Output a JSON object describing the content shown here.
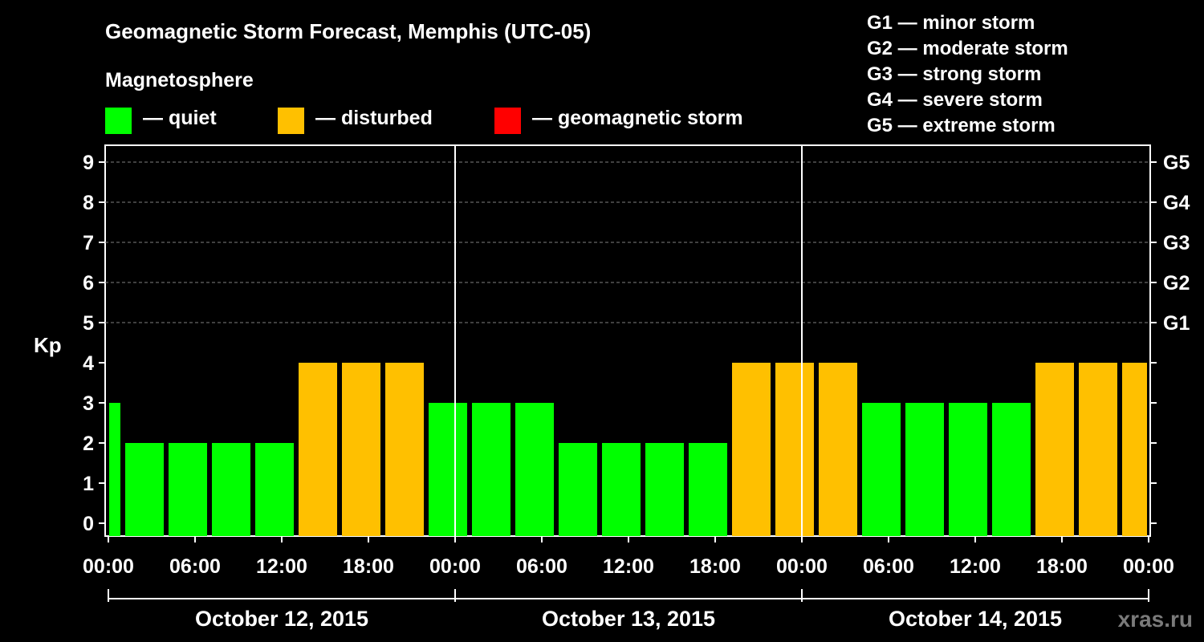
{
  "title": "Geomagnetic Storm Forecast, Memphis (UTC-05)",
  "subtitle": "Magnetosphere",
  "legend": [
    {
      "label": "— quiet",
      "color": "#00ff00"
    },
    {
      "label": "— disturbed",
      "color": "#ffc000"
    },
    {
      "label": "— geomagnetic storm",
      "color": "#ff0000"
    }
  ],
  "g_legend": [
    "G1 — minor storm",
    "G2 — moderate storm",
    "G3 — strong storm",
    "G4 — severe storm",
    "G5 — extreme storm"
  ],
  "watermark": "xras.ru",
  "chart_data": {
    "type": "bar",
    "ylabel": "Kp",
    "ylim": [
      0,
      9
    ],
    "yticks": [
      "0",
      "1",
      "2",
      "3",
      "4",
      "5",
      "6",
      "7",
      "8",
      "9"
    ],
    "right_ticks": [
      {
        "value": 5,
        "label": "G1"
      },
      {
        "value": 6,
        "label": "G2"
      },
      {
        "value": 7,
        "label": "G3"
      },
      {
        "value": 8,
        "label": "G4"
      },
      {
        "value": 9,
        "label": "G5"
      }
    ],
    "xticks": [
      "00:00",
      "06:00",
      "12:00",
      "18:00",
      "00:00",
      "06:00",
      "12:00",
      "18:00",
      "00:00",
      "06:00",
      "12:00",
      "18:00",
      "00:00"
    ],
    "days": [
      "October 12, 2015",
      "October 13, 2015",
      "October 14, 2015"
    ],
    "grid": "dashed horizontal",
    "colors": {
      "quiet": "#00ff00",
      "disturbed": "#ffc000",
      "storm": "#ff0000"
    },
    "categories": [
      "Oct 12 00:00",
      "Oct 12 01:00",
      "Oct 12 04:00",
      "Oct 12 07:00",
      "Oct 12 10:00",
      "Oct 12 13:00",
      "Oct 12 16:00",
      "Oct 12 19:00",
      "Oct 12 22:00",
      "Oct 13 01:00",
      "Oct 13 04:00",
      "Oct 13 07:00",
      "Oct 13 10:00",
      "Oct 13 13:00",
      "Oct 13 16:00",
      "Oct 13 19:00",
      "Oct 13 22:00",
      "Oct 14 01:00",
      "Oct 14 04:00",
      "Oct 14 07:00",
      "Oct 14 10:00",
      "Oct 14 13:00",
      "Oct 14 16:00",
      "Oct 14 19:00",
      "Oct 14 22:00"
    ],
    "values": [
      3,
      2,
      2,
      2,
      2,
      4,
      4,
      4,
      3,
      3,
      3,
      2,
      2,
      2,
      2,
      4,
      4,
      4,
      3,
      3,
      3,
      3,
      4,
      4,
      4
    ],
    "status": [
      "quiet",
      "quiet",
      "quiet",
      "quiet",
      "quiet",
      "disturbed",
      "disturbed",
      "disturbed",
      "quiet",
      "quiet",
      "quiet",
      "quiet",
      "quiet",
      "quiet",
      "quiet",
      "disturbed",
      "disturbed",
      "disturbed",
      "quiet",
      "quiet",
      "quiet",
      "quiet",
      "disturbed",
      "disturbed",
      "disturbed"
    ]
  }
}
